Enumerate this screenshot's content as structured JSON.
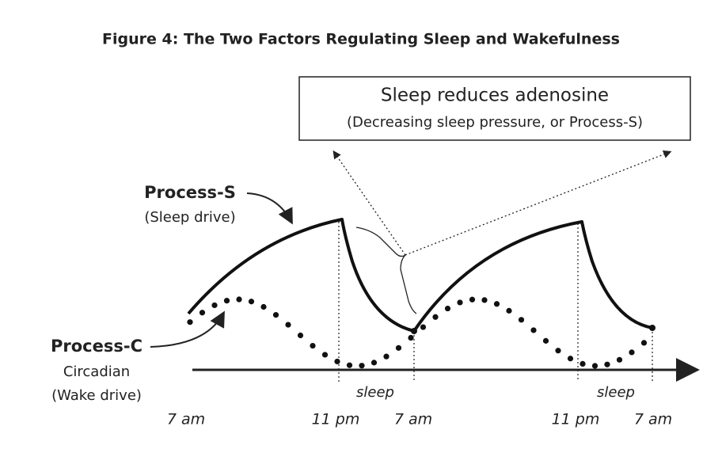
{
  "title": "Figure 4: The Two Factors Regulating Sleep and Wakefulness",
  "callout": {
    "title": "Sleep reduces adenosine",
    "subtitle": "(Decreasing sleep pressure, or Process-S)"
  },
  "process_s": {
    "label": "Process-S",
    "sublabel": "(Sleep drive)"
  },
  "process_c": {
    "label": "Process-C",
    "sublabel_lines": [
      "Circadian",
      "(Wake drive)"
    ]
  },
  "sleep_labels": [
    "sleep",
    "sleep"
  ],
  "time_labels": [
    "7 am",
    "11 pm",
    "7 am",
    "11 pm",
    "7 am"
  ]
}
